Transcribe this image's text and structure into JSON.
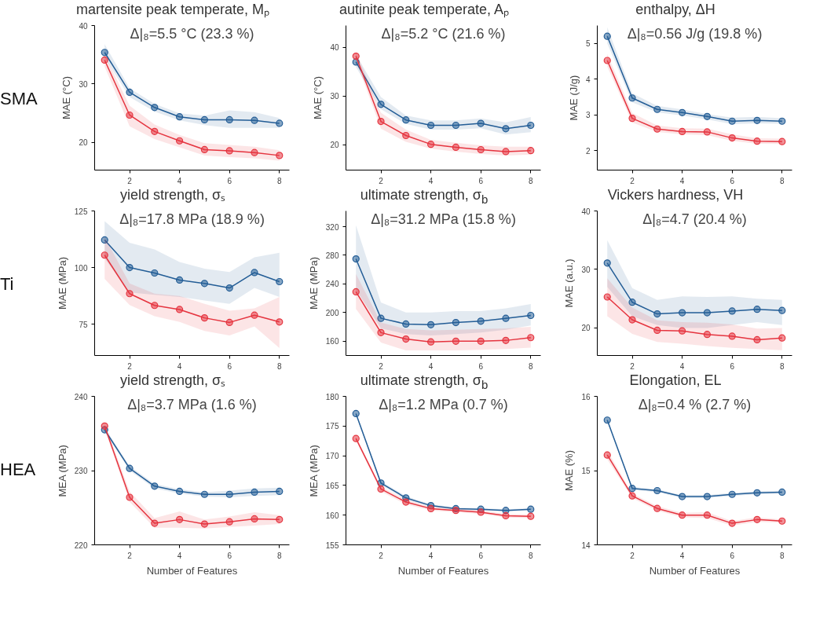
{
  "chart_data": [
    {
      "type": "line",
      "title": "martensite peak temperate, Mₚ",
      "ylabel": "MAE (°C)",
      "annotations": [
        "SMA",
        "Δ|₈=5.5 °C (23.3 %)"
      ],
      "marker": "circle",
      "x": [
        1,
        2,
        3,
        4,
        5,
        6,
        7,
        8
      ],
      "xlim": [
        0.6,
        8.4
      ],
      "xticks": [
        2,
        4,
        6,
        8
      ],
      "ylim": [
        15.3,
        40
      ],
      "yticks": [
        20,
        30,
        40
      ],
      "series": [
        {
          "color": "#235d96",
          "values": [
            35.4,
            28.6,
            26.0,
            24.4,
            23.9,
            23.9,
            23.8,
            23.3
          ],
          "lower": [
            34.5,
            27.8,
            25.3,
            23.8,
            23.0,
            22.5,
            22.5,
            22.5
          ],
          "upper": [
            36.8,
            29.3,
            26.6,
            25.0,
            24.6,
            25.5,
            25.2,
            24.2
          ]
        },
        {
          "color": "#e5343f",
          "values": [
            34.1,
            24.7,
            21.9,
            20.3,
            18.8,
            18.6,
            18.3,
            17.8
          ],
          "lower": [
            33.0,
            22.8,
            20.6,
            19.2,
            17.8,
            17.5,
            17.3,
            16.9
          ],
          "upper": [
            35.0,
            26.3,
            23.1,
            21.3,
            19.9,
            19.6,
            19.3,
            18.7
          ]
        }
      ]
    },
    {
      "type": "line",
      "title": "autinite peak temperate, Aₚ",
      "ylabel": "MAE (°C)",
      "annotations": [
        "Δ|₈=5.2 °C (21.6 %)"
      ],
      "marker": "circle",
      "x": [
        1,
        2,
        3,
        4,
        5,
        6,
        7,
        8
      ],
      "xlim": [
        0.6,
        8.4
      ],
      "xticks": [
        2,
        4,
        6,
        8
      ],
      "ylim": [
        14.8,
        44.5
      ],
      "yticks": [
        20,
        30,
        40
      ],
      "series": [
        {
          "color": "#235d96",
          "values": [
            37.0,
            28.3,
            25.1,
            24.0,
            24.0,
            24.4,
            23.3,
            24.0
          ],
          "lower": [
            36.0,
            27.3,
            24.3,
            23.1,
            23.1,
            23.4,
            22.1,
            22.6
          ],
          "upper": [
            38.5,
            29.8,
            26.0,
            25.0,
            25.0,
            25.4,
            24.6,
            25.7
          ]
        },
        {
          "color": "#e5343f",
          "values": [
            38.2,
            24.8,
            21.9,
            20.1,
            19.5,
            19.0,
            18.6,
            18.8
          ],
          "lower": [
            37.3,
            23.3,
            20.6,
            19.2,
            18.6,
            18.1,
            17.8,
            18.0
          ],
          "upper": [
            39.2,
            26.6,
            23.1,
            21.0,
            20.4,
            19.9,
            19.6,
            19.6
          ]
        }
      ]
    },
    {
      "type": "line",
      "title": "enthalpy, ΔH",
      "ylabel": "MAE (J/g)",
      "annotations": [
        "Δ|₈=0.56 J/g (19.8 %)"
      ],
      "marker": "circle",
      "x": [
        1,
        2,
        3,
        4,
        5,
        6,
        7,
        8
      ],
      "xlim": [
        0.6,
        8.4
      ],
      "xticks": [
        2,
        4,
        6,
        8
      ],
      "ylim": [
        1.45,
        5.5
      ],
      "yticks": [
        2,
        3,
        4,
        5
      ],
      "series": [
        {
          "color": "#235d96",
          "values": [
            5.2,
            3.47,
            3.15,
            3.06,
            2.95,
            2.82,
            2.84,
            2.82
          ],
          "lower": [
            5.0,
            3.35,
            3.07,
            2.98,
            2.87,
            2.74,
            2.76,
            2.75
          ],
          "upper": [
            5.45,
            3.6,
            3.25,
            3.15,
            3.02,
            2.92,
            2.94,
            2.9
          ]
        },
        {
          "color": "#e5343f",
          "values": [
            4.52,
            2.9,
            2.6,
            2.53,
            2.52,
            2.35,
            2.26,
            2.25
          ],
          "lower": [
            4.35,
            2.78,
            2.52,
            2.45,
            2.43,
            2.27,
            2.19,
            2.18
          ],
          "upper": [
            4.7,
            3.05,
            2.7,
            2.62,
            2.61,
            2.45,
            2.34,
            2.33
          ]
        }
      ]
    },
    {
      "type": "line",
      "title": "yield strength, σₛ",
      "ylabel": "MAE (MPa)",
      "annotations": [
        "Ti",
        "Δ|₈=17.8 MPa (18.9 %)"
      ],
      "marker": "circle",
      "x": [
        1,
        2,
        3,
        4,
        5,
        6,
        7,
        8
      ],
      "xlim": [
        0.6,
        8.4
      ],
      "xticks": [
        2,
        4,
        6,
        8
      ],
      "ylim": [
        61.2,
        125
      ],
      "yticks": [
        75,
        100,
        125
      ],
      "series": [
        {
          "color": "#235d96",
          "values": [
            112.2,
            100.0,
            97.6,
            94.5,
            93.0,
            91.0,
            97.8,
            93.8
          ],
          "lower": [
            104,
            89,
            88,
            87,
            85.5,
            84,
            91,
            87
          ],
          "upper": [
            120.5,
            111,
            108,
            102.5,
            99.5,
            98,
            104.5,
            106.5
          ]
        },
        {
          "color": "#e5343f",
          "values": [
            105.5,
            88.5,
            83.3,
            81.5,
            77.8,
            75.8,
            79.0,
            76.0
          ],
          "lower": [
            95,
            83.5,
            78.5,
            76,
            72,
            70,
            74,
            64.5
          ],
          "upper": [
            113.5,
            93,
            88.5,
            87.5,
            84,
            81,
            82,
            87
          ]
        }
      ]
    },
    {
      "type": "line",
      "title": "ultimate strength, σ$_{b}$",
      "ylabel": "MAE (MPa)",
      "annotations": [
        "Δ|₈=31.2 MPa (15.8 %)"
      ],
      "marker": "circle",
      "x": [
        1,
        2,
        3,
        4,
        5,
        6,
        7,
        8
      ],
      "xlim": [
        0.6,
        8.4
      ],
      "xticks": [
        2,
        4,
        6,
        8
      ],
      "ylim": [
        140,
        342
      ],
      "yticks": [
        160,
        200,
        240,
        280,
        320
      ],
      "series": [
        {
          "color": "#235d96",
          "values": [
            275,
            192,
            184,
            183,
            186,
            188,
            192,
            196
          ],
          "lower": [
            232,
            178,
            170,
            168,
            170,
            172,
            176,
            182
          ],
          "upper": [
            322,
            214,
            200,
            200,
            202,
            202,
            206,
            212
          ]
        },
        {
          "color": "#e5343f",
          "values": [
            229,
            172,
            163,
            159,
            160,
            160,
            161,
            165
          ],
          "lower": [
            205,
            158,
            147,
            147,
            147,
            148,
            149,
            151
          ],
          "upper": [
            254,
            186,
            177,
            175,
            176,
            177,
            178,
            180
          ]
        }
      ]
    },
    {
      "type": "line",
      "title": "Vickers hardness, VH",
      "ylabel": "MAE (a.u.)",
      "annotations": [
        "Δ|₈=4.7 (20.4 %)"
      ],
      "marker": "circle",
      "x": [
        1,
        2,
        3,
        4,
        5,
        6,
        7,
        8
      ],
      "xlim": [
        0.6,
        8.4
      ],
      "xticks": [
        2,
        4,
        6,
        8
      ],
      "ylim": [
        15.3,
        40
      ],
      "yticks": [
        20,
        30,
        40
      ],
      "series": [
        {
          "color": "#235d96",
          "values": [
            31.1,
            24.4,
            22.4,
            22.6,
            22.6,
            22.9,
            23.2,
            23.0
          ],
          "lower": [
            27,
            22,
            20.5,
            20,
            20,
            20.5,
            21,
            20.5
          ],
          "upper": [
            35,
            26.8,
            24.8,
            25.4,
            25.3,
            25.4,
            25.0,
            24.8
          ]
        },
        {
          "color": "#e5343f",
          "values": [
            25.3,
            21.4,
            19.6,
            19.5,
            18.9,
            18.6,
            18.0,
            18.3
          ],
          "lower": [
            22,
            19,
            17.6,
            17.3,
            16.9,
            16.6,
            16.4,
            16.2
          ],
          "upper": [
            28.5,
            23.5,
            21.3,
            21.0,
            20.9,
            20.6,
            19.9,
            20.0
          ]
        }
      ]
    },
    {
      "type": "line",
      "title": "yield strength, σₛ",
      "xlabel": "Number of Features",
      "ylabel": "MEA (MPa)",
      "annotations": [
        "HEA",
        "Δ|₈=3.7 MPa (1.6 %)"
      ],
      "marker": "circle",
      "x": [
        1,
        2,
        3,
        4,
        5,
        6,
        7,
        8
      ],
      "xlim": [
        0.6,
        8.4
      ],
      "xticks": [
        2,
        4,
        6,
        8
      ],
      "ylim": [
        220,
        240
      ],
      "yticks": [
        220,
        230,
        240
      ],
      "series": [
        {
          "color": "#235d96",
          "values": [
            235.5,
            230.3,
            227.9,
            227.2,
            226.8,
            226.8,
            227.1,
            227.2
          ],
          "lower": [
            235.2,
            230.0,
            227.6,
            226.9,
            226.5,
            226.4,
            226.6,
            226.7
          ],
          "upper": [
            235.8,
            230.6,
            228.2,
            227.5,
            227.1,
            227.3,
            227.6,
            227.7
          ]
        },
        {
          "color": "#e5343f",
          "values": [
            236.0,
            226.4,
            222.9,
            223.4,
            222.8,
            223.1,
            223.5,
            223.4
          ],
          "lower": [
            235.6,
            225.8,
            222.3,
            222.3,
            222.2,
            222.4,
            222.6,
            222.8
          ],
          "upper": [
            236.4,
            227.2,
            223.6,
            224.5,
            223.4,
            223.8,
            224.4,
            224.0
          ]
        }
      ]
    },
    {
      "type": "line",
      "title": "ultimate strength, σ$_{b}$",
      "xlabel": "Number of Features",
      "ylabel": "MEA (MPa)",
      "annotations": [
        "Δ|₈=1.2 MPa (0.7 %)"
      ],
      "marker": "circle",
      "x": [
        1,
        2,
        3,
        4,
        5,
        6,
        7,
        8
      ],
      "xlim": [
        0.6,
        8.4
      ],
      "xticks": [
        2,
        4,
        6,
        8
      ],
      "ylim": [
        155,
        180
      ],
      "yticks": [
        155,
        160,
        165,
        170,
        175,
        180
      ],
      "series": [
        {
          "color": "#235d96",
          "values": [
            177.1,
            165.4,
            162.9,
            161.6,
            161.1,
            161.0,
            160.8,
            161.0
          ],
          "lower": [
            176.9,
            165.1,
            162.6,
            161.4,
            160.9,
            160.8,
            160.6,
            160.8
          ],
          "upper": [
            177.3,
            165.7,
            163.2,
            161.8,
            161.3,
            161.2,
            161.0,
            161.2
          ]
        },
        {
          "color": "#e5343f",
          "values": [
            172.9,
            164.4,
            162.2,
            161.1,
            160.8,
            160.5,
            159.9,
            159.8
          ],
          "lower": [
            172.6,
            164.0,
            161.8,
            160.8,
            160.5,
            160.2,
            159.6,
            159.5
          ],
          "upper": [
            173.2,
            164.8,
            162.6,
            161.4,
            161.1,
            160.8,
            160.2,
            160.1
          ]
        }
      ]
    },
    {
      "type": "line",
      "title": "Elongation, EL",
      "xlabel": "Number of Features",
      "ylabel": "MAE (%)",
      "annotations": [
        "Δ|₈=0.4 % (2.7 %)"
      ],
      "marker": "circle",
      "x": [
        1,
        2,
        3,
        4,
        5,
        6,
        7,
        8
      ],
      "xlim": [
        0.6,
        8.4
      ],
      "xticks": [
        2,
        4,
        6,
        8
      ],
      "ylim": [
        14,
        16
      ],
      "yticks": [
        14,
        15,
        16
      ],
      "series": [
        {
          "color": "#235d96",
          "values": [
            15.68,
            14.76,
            14.73,
            14.65,
            14.65,
            14.68,
            14.7,
            14.71
          ],
          "lower": [
            15.66,
            14.74,
            14.71,
            14.63,
            14.63,
            14.66,
            14.68,
            14.69
          ],
          "upper": [
            15.7,
            14.78,
            14.75,
            14.67,
            14.67,
            14.7,
            14.72,
            14.73
          ]
        },
        {
          "color": "#e5343f",
          "values": [
            15.21,
            14.66,
            14.49,
            14.4,
            14.4,
            14.29,
            14.34,
            14.32
          ],
          "lower": [
            15.15,
            14.63,
            14.46,
            14.37,
            14.36,
            14.26,
            14.31,
            14.3
          ],
          "upper": [
            15.27,
            14.69,
            14.52,
            14.43,
            14.44,
            14.32,
            14.37,
            14.34
          ]
        }
      ]
    }
  ]
}
